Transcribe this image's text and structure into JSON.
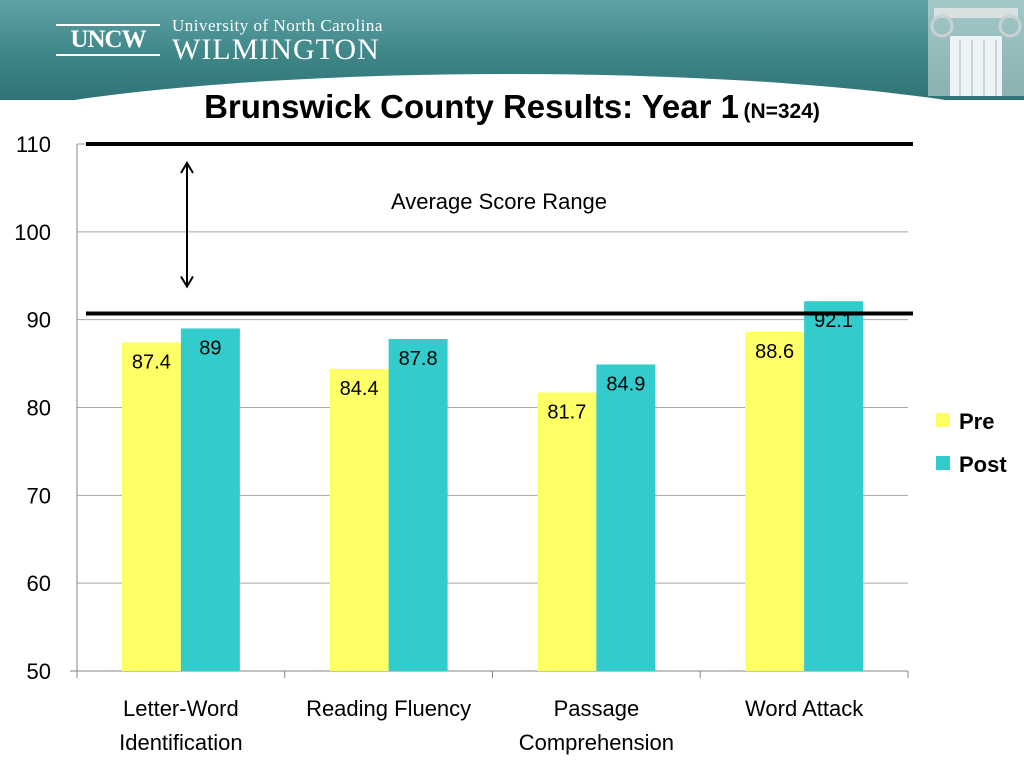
{
  "header": {
    "logo_text": "UNCW",
    "university": "University of North Carolina",
    "city": "WILMINGTON"
  },
  "title": {
    "main": "Brunswick County Results: Year 1",
    "sub": "(N=324)"
  },
  "chart_data": {
    "type": "bar",
    "categories": [
      [
        "Letter-Word",
        "Identification"
      ],
      [
        "Reading Fluency"
      ],
      [
        "Passage",
        "Comprehension"
      ],
      [
        "Word Attack"
      ]
    ],
    "series": [
      {
        "name": "Pre",
        "values": [
          87.4,
          84.4,
          81.7,
          88.6
        ],
        "labels": [
          "87.4",
          "84.4",
          "81.7",
          "88.6"
        ],
        "color": "#ffff66"
      },
      {
        "name": "Post",
        "values": [
          89,
          87.8,
          84.9,
          92.1
        ],
        "labels": [
          "89",
          "87.8",
          "84.9",
          "92.1"
        ],
        "color": "#33cccc"
      }
    ],
    "ylim": [
      50,
      110
    ],
    "yticks": [
      50,
      60,
      70,
      80,
      90,
      100,
      110
    ],
    "grid": true,
    "legend": "right",
    "reference_lines": [
      110,
      90.7
    ],
    "annotation": "Average Score Range"
  }
}
